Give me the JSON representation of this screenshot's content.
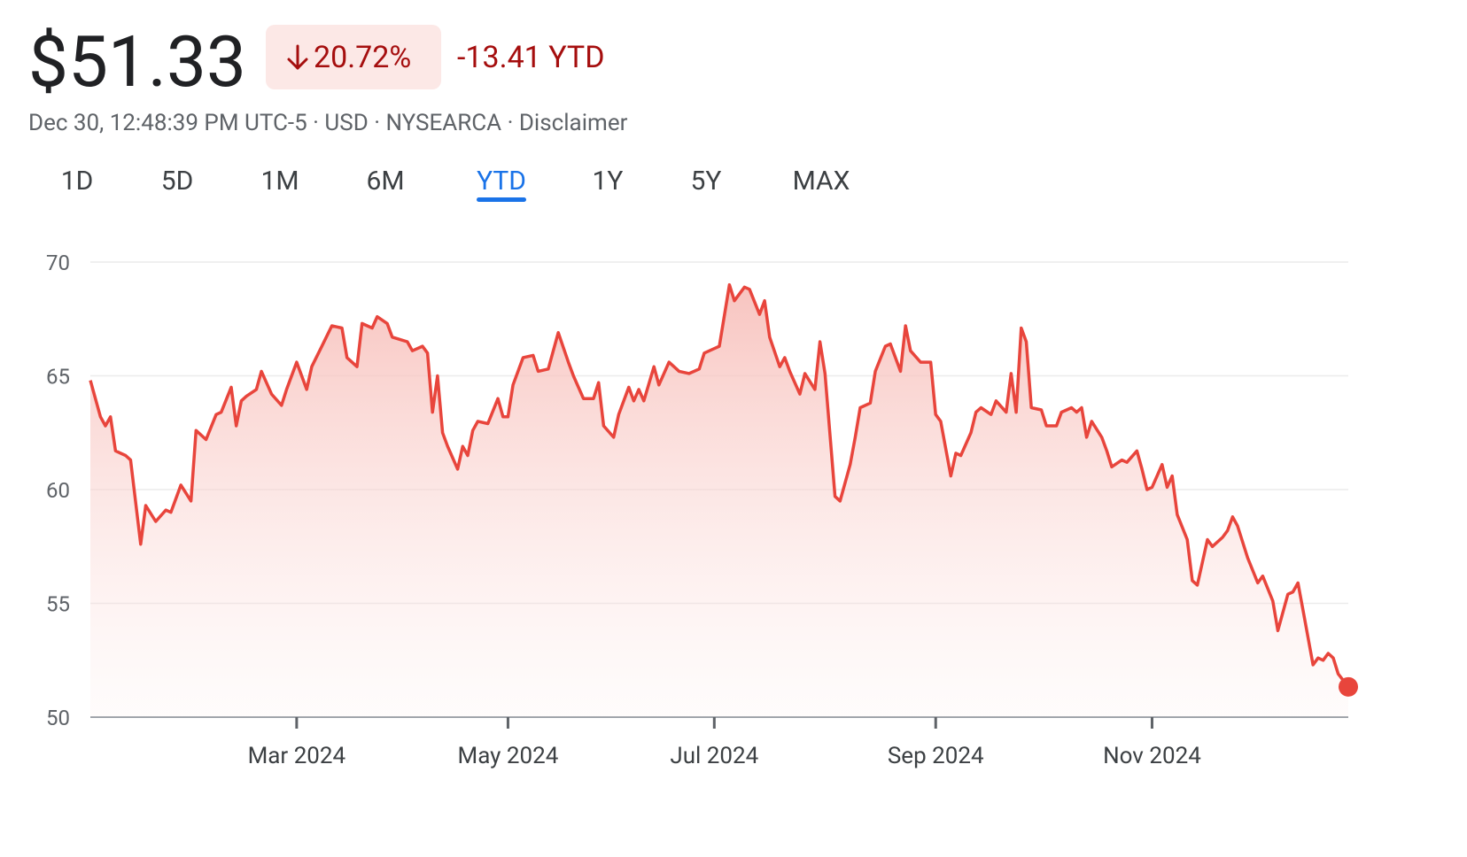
{
  "header": {
    "price": "$51.33",
    "change_percent": "20.72%",
    "change_ytd": "-13.41 YTD",
    "meta": "Dec 30, 12:48:39 PM UTC-5 · USD · NYSEARCA · Disclaimer"
  },
  "tabs": [
    "1D",
    "5D",
    "1M",
    "6M",
    "YTD",
    "1Y",
    "5Y",
    "MAX"
  ],
  "active_tab": "YTD",
  "chart_data": {
    "type": "line",
    "color": "#e8453c",
    "x": [
      0,
      2,
      3,
      4,
      5,
      7,
      8,
      10,
      11,
      13,
      15,
      16,
      18,
      20,
      21,
      23,
      25,
      26,
      28,
      29,
      30,
      31,
      33,
      34,
      36,
      38,
      39,
      41,
      43,
      44,
      46,
      48,
      50,
      51,
      53,
      54,
      56,
      57,
      59,
      60,
      63,
      64,
      66,
      67,
      68,
      69,
      70,
      71,
      73,
      74,
      75,
      76,
      77,
      79,
      81,
      82,
      83,
      84,
      86,
      88,
      89,
      91,
      93,
      95,
      96,
      98,
      100,
      101,
      102,
      104,
      105,
      107,
      108,
      109,
      110,
      112,
      113,
      115,
      117,
      119,
      121,
      122,
      124,
      125,
      127,
      128,
      130,
      131,
      133,
      134,
      135,
      137,
      138,
      139,
      141,
      142,
      144,
      145,
      146,
      148,
      149,
      151,
      152,
      153,
      155,
      156,
      158,
      159,
      161,
      162,
      163,
      165,
      167,
      168,
      169,
      171,
      172,
      173,
      175,
      176,
      177,
      179,
      180,
      182,
      183,
      184,
      185,
      186,
      187,
      189,
      190,
      192,
      193,
      195,
      196,
      197,
      198,
      199,
      201,
      202,
      203,
      205,
      206,
      208,
      209,
      210,
      211,
      213,
      214,
      215,
      216,
      218,
      219,
      220,
      222,
      223,
      225,
      226,
      227,
      228,
      230,
      232,
      233,
      235,
      236,
      238,
      239,
      240,
      241,
      243,
      244,
      245,
      246,
      247,
      248,
      250
    ],
    "values": [
      64.8,
      63.2,
      62.8,
      63.2,
      61.7,
      61.5,
      61.3,
      57.6,
      59.3,
      58.6,
      59.1,
      59.0,
      60.2,
      59.5,
      62.6,
      62.2,
      63.3,
      63.4,
      64.5,
      62.8,
      63.9,
      64.1,
      64.4,
      65.2,
      64.2,
      63.7,
      64.4,
      65.6,
      64.4,
      65.4,
      66.3,
      67.2,
      67.1,
      65.8,
      65.4,
      67.3,
      67.1,
      67.6,
      67.3,
      66.7,
      66.5,
      66.1,
      66.3,
      66.0,
      63.4,
      65.0,
      62.5,
      61.9,
      60.9,
      61.9,
      61.5,
      62.6,
      63.0,
      62.9,
      64.0,
      63.2,
      63.2,
      64.6,
      65.8,
      65.9,
      65.2,
      65.3,
      66.9,
      65.6,
      65.0,
      64.0,
      64.0,
      64.7,
      62.8,
      62.3,
      63.3,
      64.5,
      63.9,
      64.4,
      63.9,
      65.4,
      64.6,
      65.6,
      65.2,
      65.1,
      65.3,
      66.0,
      66.2,
      66.3,
      69.0,
      68.3,
      68.9,
      68.8,
      67.7,
      68.3,
      66.7,
      65.4,
      65.8,
      65.2,
      64.2,
      65.1,
      64.4,
      66.5,
      65.1,
      59.7,
      59.5,
      61.1,
      62.3,
      63.6,
      63.8,
      65.2,
      66.3,
      66.4,
      65.2,
      67.2,
      66.1,
      65.6,
      65.6,
      63.3,
      63.0,
      60.6,
      61.6,
      61.5,
      62.5,
      63.4,
      63.6,
      63.3,
      63.9,
      63.4,
      65.1,
      63.4,
      67.1,
      66.5,
      63.6,
      63.5,
      62.8,
      62.8,
      63.4,
      63.6,
      63.4,
      63.6,
      62.3,
      63.0,
      62.3,
      61.7,
      61.0,
      61.3,
      61.2,
      61.7,
      60.9,
      60.0,
      60.1,
      61.1,
      60.1,
      60.6,
      58.9,
      57.8,
      56.0,
      55.8,
      57.8,
      57.5,
      57.9,
      58.2,
      58.8,
      58.4,
      57.0,
      55.9,
      56.2,
      55.1,
      53.8,
      55.4,
      55.5,
      55.9,
      54.7,
      52.3,
      52.6,
      52.5,
      52.8,
      52.6,
      51.9,
      51.33
    ],
    "xlim": [
      0,
      250
    ],
    "xticks": [
      {
        "value": 41,
        "label": "Mar 2024"
      },
      {
        "value": 83,
        "label": "May 2024"
      },
      {
        "value": 124,
        "label": "Jul 2024"
      },
      {
        "value": 168,
        "label": "Sep 2024"
      },
      {
        "value": 211,
        "label": "Nov 2024"
      }
    ],
    "ylim": [
      50,
      70
    ],
    "yticks": [
      50,
      55,
      60,
      65,
      70
    ],
    "grid": true
  }
}
